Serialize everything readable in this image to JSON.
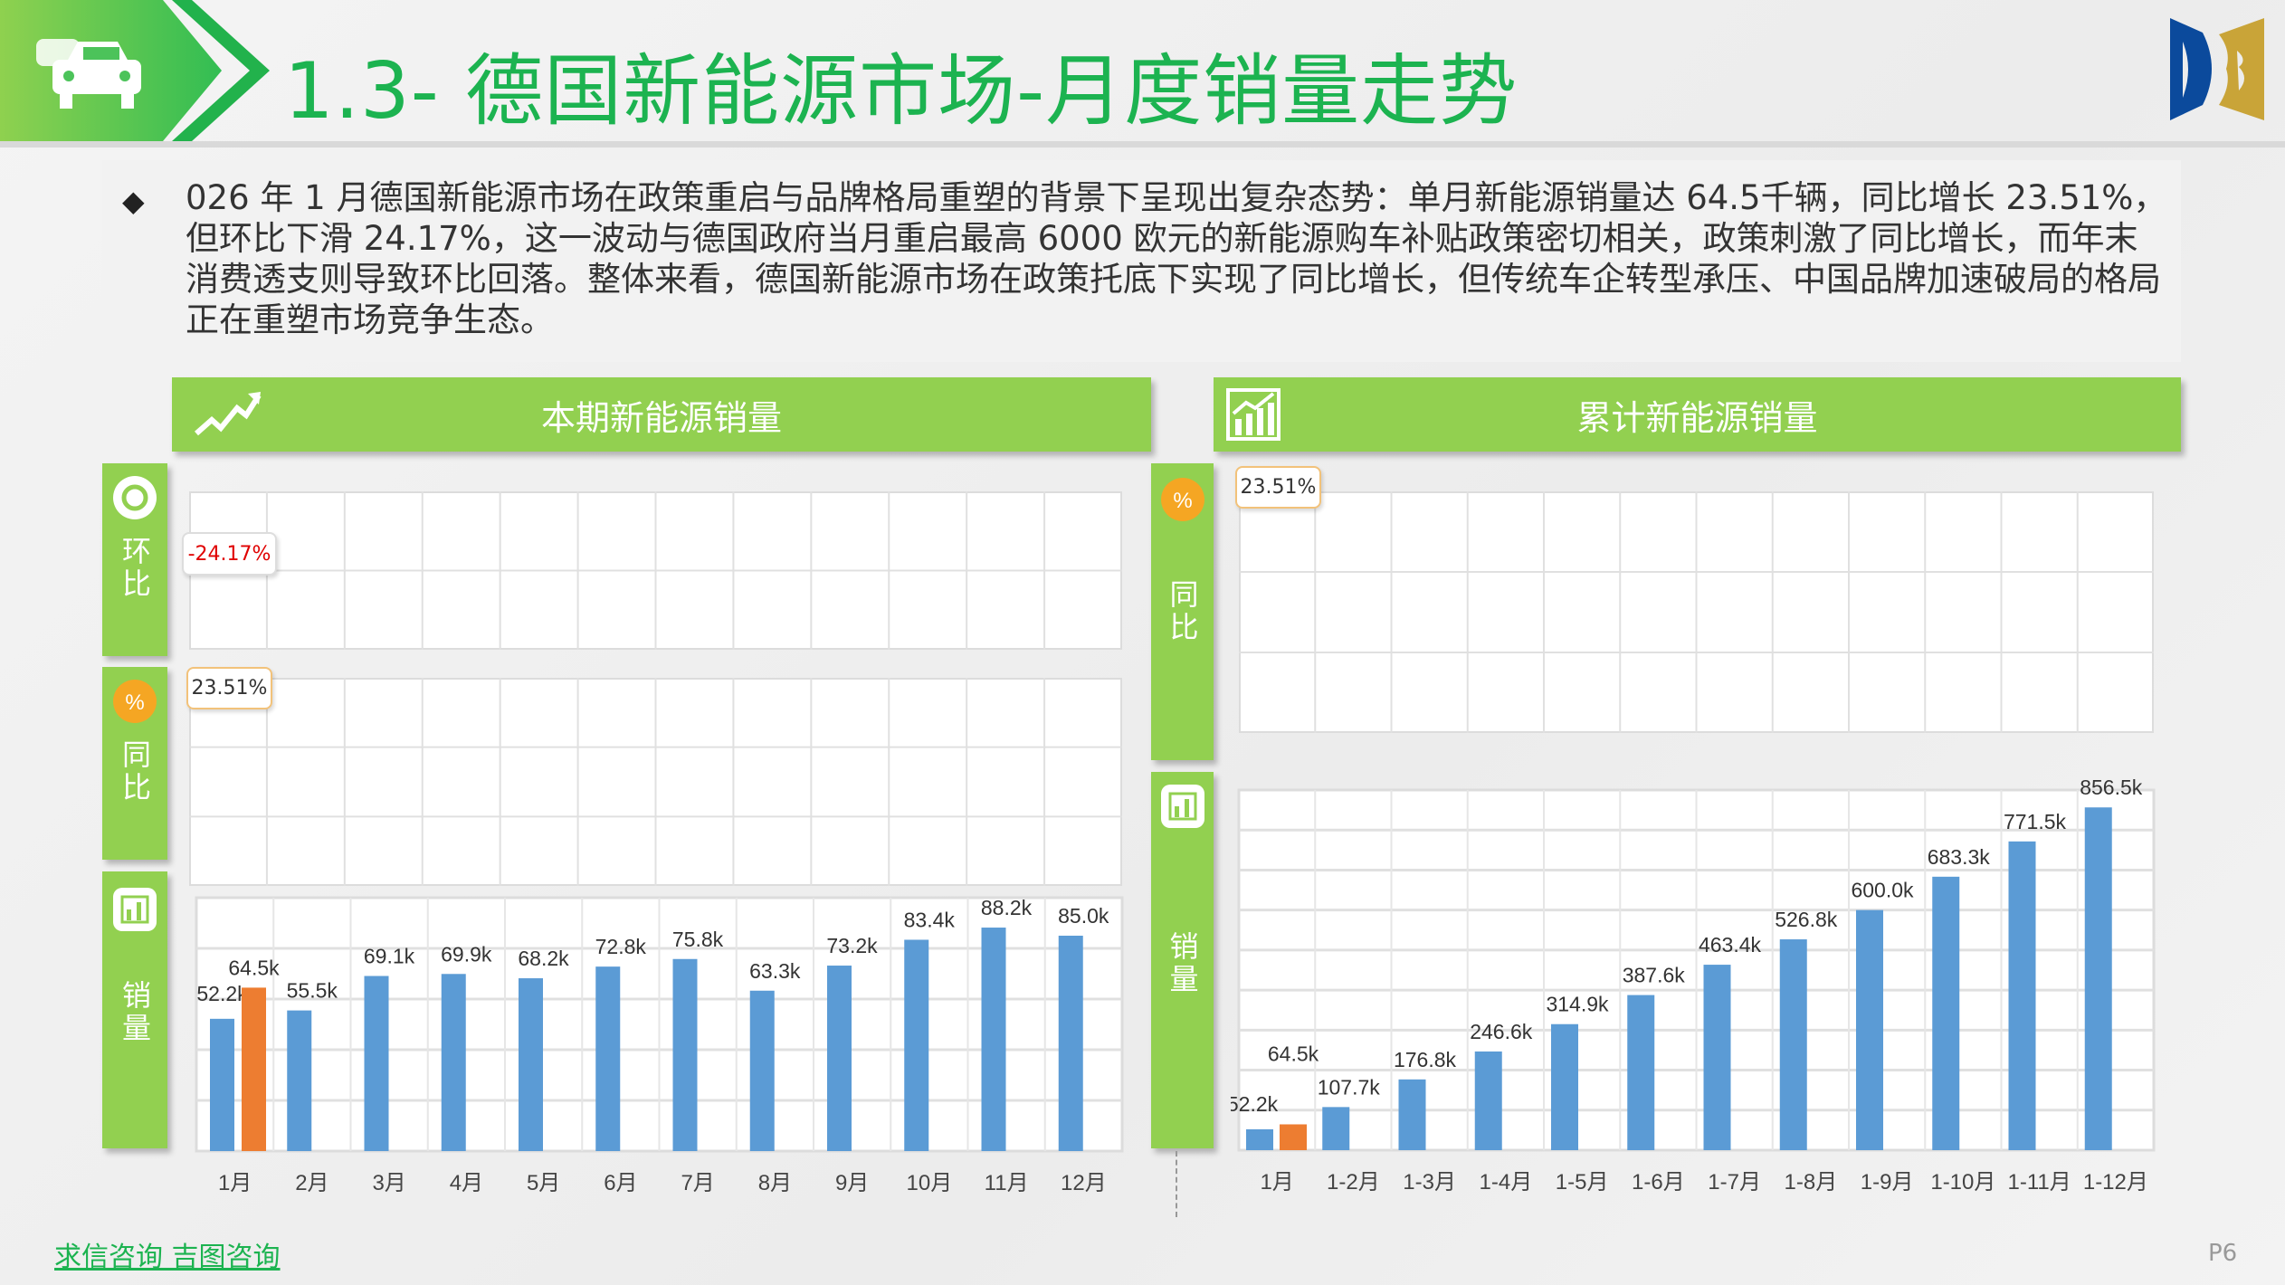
{
  "header": {
    "title": "1.3- 德国新能源市场-月度销量走势",
    "icon": "car-icon",
    "logo": "DB"
  },
  "summary": {
    "bullet": "◆",
    "text": "026 年 1 月德国新能源市场在政策重启与品牌格局重塑的背景下呈现出复杂态势：单月新能源销量达 64.5千辆，同比增长 23.51%，但环比下滑 24.17%，这一波动与德国政府当月重启最高 6000 欧元的新能源购车补贴政策密切相关，政策刺激了同比增长，而年末消费透支则导致环比回落。整体来看，德国新能源市场在政策托底下实现了同比增长，但传统车企转型承压、中国品牌加速破局的格局正在重塑市场竞争生态。"
  },
  "left_panel": {
    "title": "本期新能源销量",
    "icon": "trend-line-icon",
    "tabs": [
      {
        "label": "环比",
        "icon": "circle-icon"
      },
      {
        "label": "同比",
        "icon": "percent-icon"
      },
      {
        "label": "销量",
        "icon": "bar-chart-icon"
      }
    ],
    "mom_callout": "-24.17%",
    "yoy_callout": "23.51%"
  },
  "right_panel": {
    "title": "累计新能源销量",
    "icon": "growth-chart-icon",
    "tabs": [
      {
        "label": "同比",
        "icon": "percent-icon"
      },
      {
        "label": "销量",
        "icon": "bar-chart-icon"
      }
    ],
    "yoy_callout": "23.51%"
  },
  "colors": {
    "green": "#92d050",
    "title_green": "#1cb350",
    "blue": "#5b9bd5",
    "orange": "#ed7d31",
    "negative": "#e00000"
  },
  "chart_data": [
    {
      "type": "bar",
      "categories": [
        "1月",
        "2月",
        "3月",
        "4月",
        "5月",
        "6月",
        "7月",
        "8月",
        "9月",
        "10月",
        "11月",
        "12月"
      ],
      "series": [
        {
          "values": [
            52.2,
            55.5,
            69.1,
            69.9,
            68.2,
            72.8,
            75.8,
            63.3,
            73.2,
            83.4,
            88.2,
            85.0
          ],
          "color": "#5b9bd5"
        },
        {
          "values": [
            64.5,
            null,
            null,
            null,
            null,
            null,
            null,
            null,
            null,
            null,
            null,
            null
          ],
          "color": "#ed7d31"
        }
      ],
      "data_labels": [
        [
          "52.2k",
          "55.5k",
          "69.1k",
          "69.9k",
          "68.2k",
          "72.8k",
          "75.8k",
          "63.3k",
          "73.2k",
          "83.4k",
          "88.2k",
          "85.0k"
        ],
        [
          "64.5k"
        ]
      ],
      "ylim": [
        0,
        100
      ],
      "grid": true
    },
    {
      "type": "bar",
      "categories": [
        "1月",
        "1-2月",
        "1-3月",
        "1-4月",
        "1-5月",
        "1-6月",
        "1-7月",
        "1-8月",
        "1-9月",
        "1-10月",
        "1-11月",
        "1-12月"
      ],
      "series": [
        {
          "values": [
            52.2,
            107.7,
            176.8,
            246.6,
            314.9,
            387.6,
            463.4,
            526.8,
            600.0,
            683.3,
            771.5,
            856.5
          ],
          "color": "#5b9bd5"
        },
        {
          "values": [
            64.5,
            null,
            null,
            null,
            null,
            null,
            null,
            null,
            null,
            null,
            null,
            null
          ],
          "color": "#ed7d31"
        }
      ],
      "data_labels": [
        [
          "52.2k",
          "107.7k",
          "176.8k",
          "246.6k",
          "314.9k",
          "387.6k",
          "463.4k",
          "526.8k",
          "600.0k",
          "683.3k",
          "771.5k",
          "856.5k"
        ],
        [
          "64.5k"
        ]
      ],
      "ylim": [
        0,
        900
      ],
      "grid": true
    }
  ],
  "footer": {
    "links": "求信咨询  吉图咨询",
    "page": "P6"
  }
}
